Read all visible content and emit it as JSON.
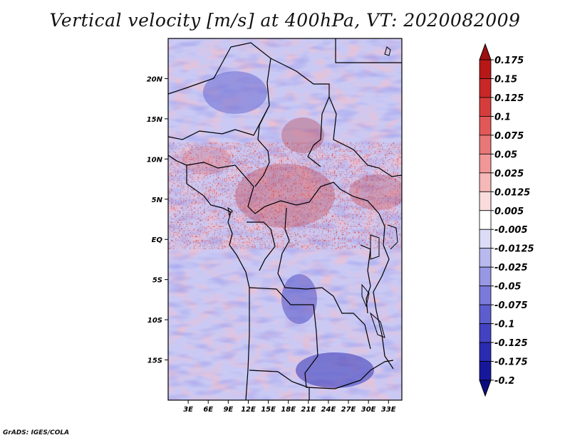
{
  "title": "Vertical velocity [m/s] at 400hPa, VT: 2020082009",
  "credit": "GrADS: IGES/COLA",
  "map": {
    "region": "Central Africa",
    "projection": "lat-lon",
    "lon_range": [
      0,
      35
    ],
    "lat_range": [
      -20,
      25
    ],
    "lat_ticks": [
      "20N",
      "15N",
      "10N",
      "5N",
      "EQ",
      "5S",
      "10S",
      "15S"
    ],
    "lat_tick_values": [
      20,
      15,
      10,
      5,
      0,
      -5,
      -10,
      -15
    ],
    "lon_ticks": [
      "3E",
      "6E",
      "9E",
      "12E",
      "15E",
      "18E",
      "21E",
      "24E",
      "27E",
      "30E",
      "33E"
    ],
    "lon_tick_values": [
      3,
      6,
      9,
      12,
      15,
      18,
      21,
      24,
      27,
      30,
      33
    ]
  },
  "colorbar": {
    "labels": [
      "0.175",
      "0.15",
      "0.125",
      "0.1",
      "0.075",
      "0.05",
      "0.025",
      "0.0125",
      "0.005",
      "-0.005",
      "-0.0125",
      "-0.025",
      "-0.05",
      "-0.075",
      "-0.1",
      "-0.125",
      "-0.175",
      "-0.2"
    ],
    "colors": [
      "#a00e0e",
      "#b81717",
      "#c92727",
      "#d73c3c",
      "#e25858",
      "#ea7777",
      "#f19797",
      "#f6b8b8",
      "#fadcdc",
      "#ffffff",
      "#dcdcf8",
      "#b9b9f0",
      "#9797e6",
      "#7a7adc",
      "#5d5dd0",
      "#4242c2",
      "#2a2ab2",
      "#17179c",
      "#0c0c82"
    ]
  }
}
